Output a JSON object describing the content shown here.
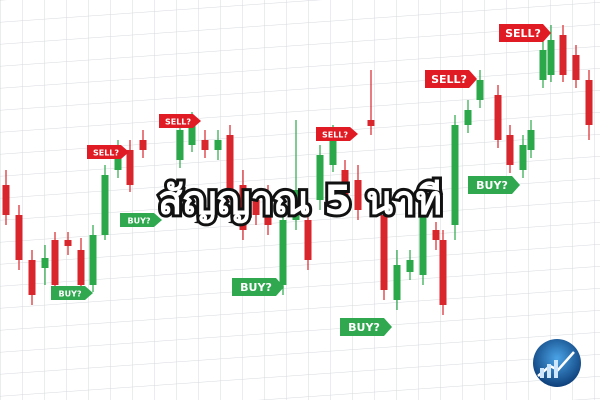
{
  "title": "สัญญาณ 5 นาที",
  "signals": [
    {
      "label": "SELL?",
      "kind": "sell"
    },
    {
      "label": "SELL?",
      "kind": "sell"
    },
    {
      "label": "SELL?",
      "kind": "sell"
    },
    {
      "label": "SELL?",
      "kind": "sell"
    },
    {
      "label": "SELL?",
      "kind": "sell"
    },
    {
      "label": "BUY?",
      "kind": "buy"
    },
    {
      "label": "BUY?",
      "kind": "buy"
    },
    {
      "label": "BUY?",
      "kind": "buy"
    },
    {
      "label": "BUY?",
      "kind": "buy"
    },
    {
      "label": "BUY?",
      "kind": "buy"
    }
  ]
}
